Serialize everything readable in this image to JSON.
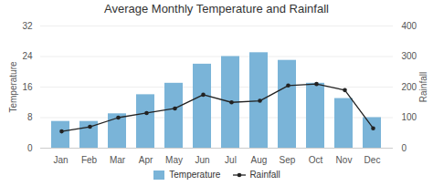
{
  "chart_data": {
    "type": "bar",
    "title": "Average Monthly Temperature and Rainfall",
    "categories": [
      "Jan",
      "Feb",
      "Mar",
      "Apr",
      "May",
      "Jun",
      "Jul",
      "Aug",
      "Sep",
      "Oct",
      "Nov",
      "Dec"
    ],
    "series": [
      {
        "name": "Temperature",
        "type": "bar",
        "color": "#7ab4d8",
        "values": [
          7,
          7,
          9,
          14,
          17,
          22,
          24,
          25,
          23,
          17,
          13,
          8
        ]
      },
      {
        "name": "Rainfall",
        "type": "line",
        "axis": "y2",
        "color": "#222222",
        "marker": "circle",
        "values": [
          55,
          70,
          100,
          115,
          130,
          175,
          150,
          155,
          205,
          210,
          190,
          65
        ]
      }
    ],
    "ylim": [
      0,
      32
    ],
    "yticks": [
      0,
      8,
      16,
      24,
      32
    ],
    "y2lim": [
      0,
      400
    ],
    "y2ticks": [
      0,
      100,
      200,
      300,
      400
    ],
    "ylabel": "Temperature",
    "y2label": "Rainfall",
    "grid": true,
    "legend": "bottom"
  }
}
